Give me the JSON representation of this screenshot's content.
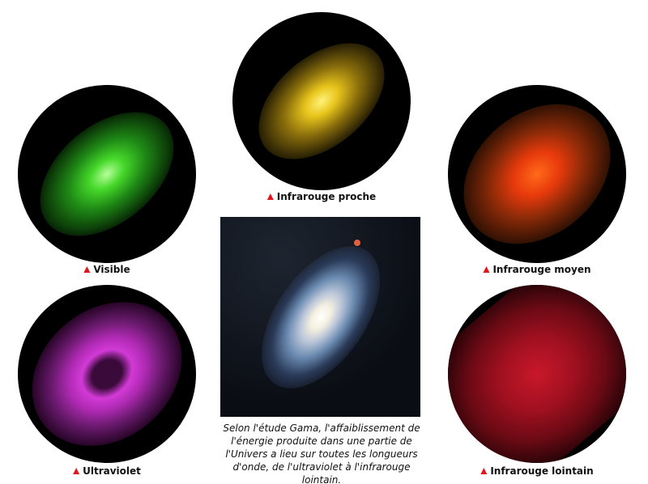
{
  "panels": [
    {
      "label": "Visible",
      "color": "#3ccf2a"
    },
    {
      "label": "Infrarouge proche",
      "color": "#e8c51c"
    },
    {
      "label": "Infrarouge moyen",
      "color": "#ff4a10"
    },
    {
      "label": "Ultraviolet",
      "color": "#d23ad6"
    },
    {
      "label": "Infrarouge lointain",
      "color": "#b0101e"
    }
  ],
  "caption": "Selon l'étude Gama, l'affaiblissement de l'énergie produite dans une partie de l'Univers a lieu sur toutes les longueurs d'onde, de l'ultraviolet à l'infrarouge lointain.",
  "marker_color": "#e0161b"
}
